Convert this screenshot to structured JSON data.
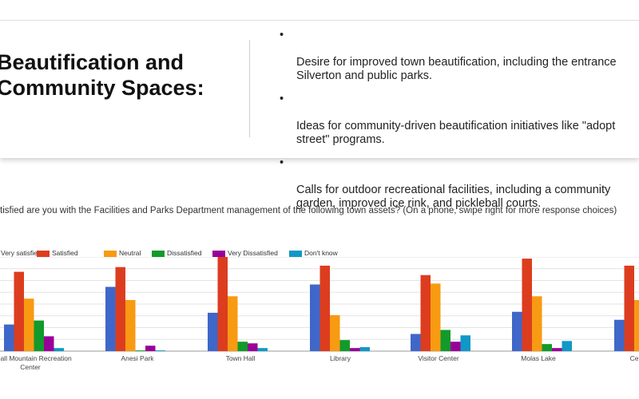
{
  "slide": {
    "title_line1": "Beautification and",
    "title_line2": "Community Spaces:",
    "bullets": [
      {
        "marker": "•",
        "text": "Desire for improved town beautification, including the entrance\nSilverton and public parks."
      },
      {
        "marker": "•",
        "text": "Ideas for community-driven beautification initiatives like \"adopt\nstreet\" programs."
      },
      {
        "marker": "•",
        "text": "Calls for outdoor recreational facilities, including a community\ngarden, improved ice rink, and pickleball courts."
      }
    ]
  },
  "chart_data": {
    "type": "bar",
    "title": "tisfied are you with the Facilities and Parks Department management of the following town assets? (On a phone, swipe right for more response choices)",
    "xlabel": "",
    "ylabel": "",
    "grid": true,
    "legend_position": "top-left",
    "categories": [
      "Kendall Mountain Recreation Center",
      "Anesi Park",
      "Town Hall",
      "Library",
      "Visitor Center",
      "Molas Lake",
      "Ce"
    ],
    "category_labels": [
      [
        "endall Mountain Recreation",
        "Center"
      ],
      [
        "Anesi Park"
      ],
      [
        "Town Hall"
      ],
      [
        "Library"
      ],
      [
        "Visitor Center"
      ],
      [
        "Molas Lake"
      ],
      [
        "Ce"
      ]
    ],
    "ylim": [
      0,
      40
    ],
    "series": [
      {
        "name": "Very satisfied",
        "color": "#3f67c9",
        "values": [
          11.3,
          27.3,
          16.3,
          28.3,
          7.3,
          16.7,
          13.3
        ]
      },
      {
        "name": "Satisfied",
        "color": "#dc3d1f",
        "values": [
          33.7,
          35.7,
          40.3,
          36.3,
          32.3,
          39.3,
          36.3
        ]
      },
      {
        "name": "Neutral",
        "color": "#f89a12",
        "values": [
          22.3,
          21.7,
          23.3,
          15.3,
          28.7,
          23.3,
          21.7
        ]
      },
      {
        "name": "Dissatisfied",
        "color": "#129a2a",
        "values": [
          13.0,
          0.3,
          4.0,
          4.7,
          9.0,
          3.0,
          0
        ]
      },
      {
        "name": "Very Dissatisfied",
        "color": "#990099",
        "values": [
          6.3,
          2.3,
          3.3,
          1.3,
          4.0,
          1.3,
          0
        ]
      },
      {
        "name": "Don't know",
        "color": "#1098c6",
        "values": [
          1.3,
          0.3,
          1.3,
          1.7,
          6.7,
          4.3,
          0
        ]
      }
    ]
  }
}
